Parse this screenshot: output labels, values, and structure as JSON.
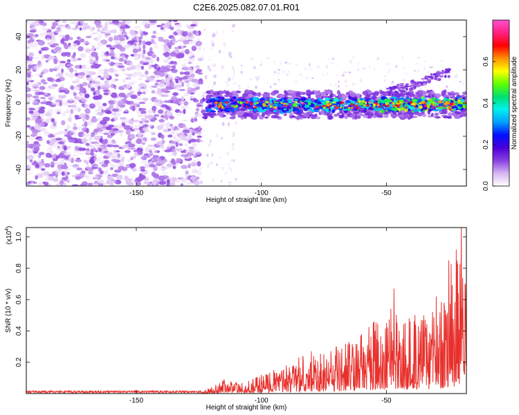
{
  "chart_data": [
    {
      "type": "heatmap",
      "title": "C2E6.2025.082.07.01.R01",
      "xlabel": "Height of straight line (km)",
      "ylabel": "Frequency (Hz)",
      "xlim": [
        -194,
        -18
      ],
      "ylim": [
        -50,
        50
      ],
      "xticks": [
        -150,
        -100,
        -50
      ],
      "yticks": [
        -40,
        -20,
        0,
        20,
        40
      ],
      "colorbar": {
        "label": "Normalized spectral amplitude",
        "range": [
          0,
          0.8
        ],
        "ticks": [
          0.0,
          0.2,
          0.4,
          0.6
        ],
        "colors": [
          "#ffffff",
          "#d6b4f2",
          "#8a3fe0",
          "#4b00d8",
          "#0010ff",
          "#00a0ff",
          "#00f0f0",
          "#00e070",
          "#60ff00",
          "#ffff00",
          "#ff9000",
          "#ff0000",
          "#ff2080",
          "#ff50d0"
        ]
      },
      "regions": [
        {
          "name": "noise",
          "x": [
            -194,
            -124
          ],
          "freq": [
            -50,
            50
          ],
          "amplitude": 0.07
        },
        {
          "name": "signal-band",
          "x": [
            -124,
            -18
          ],
          "freq": [
            -6,
            6
          ],
          "center_freq": -1,
          "peak_amplitude": 0.8
        },
        {
          "name": "tail",
          "x": [
            -50,
            -25
          ],
          "freq": [
            6,
            18
          ],
          "amplitude": 0.1
        }
      ]
    },
    {
      "type": "line",
      "xlabel": "Height of straight line (km)",
      "ylabel": "SNR (10 * v/v)",
      "scale_note": "(x10⁴)",
      "scale_exp": "4",
      "xlim": [
        -194,
        -18
      ],
      "ylim": [
        0,
        1.06
      ],
      "xticks": [
        -150,
        -100,
        -50
      ],
      "yticks": [
        0.2,
        0.4,
        0.6,
        0.8,
        1.0
      ],
      "color": "#e8302c",
      "series": [
        {
          "name": "SNR",
          "x": [
            -194,
            -180,
            -160,
            -140,
            -125,
            -120,
            -115,
            -110,
            -105,
            -100,
            -95,
            -90,
            -85,
            -80,
            -75,
            -70,
            -65,
            -60,
            -55,
            -50,
            -47,
            -45,
            -40,
            -35,
            -30,
            -27,
            -25,
            -22,
            -20,
            -18
          ],
          "y": [
            0.01,
            0.01,
            0.01,
            0.01,
            0.01,
            0.04,
            0.09,
            0.07,
            0.08,
            0.12,
            0.15,
            0.18,
            0.23,
            0.27,
            0.25,
            0.3,
            0.33,
            0.38,
            0.46,
            0.45,
            0.67,
            0.4,
            0.55,
            0.5,
            0.62,
            0.58,
            0.85,
            0.92,
            1.06,
            0.75
          ]
        }
      ]
    }
  ]
}
